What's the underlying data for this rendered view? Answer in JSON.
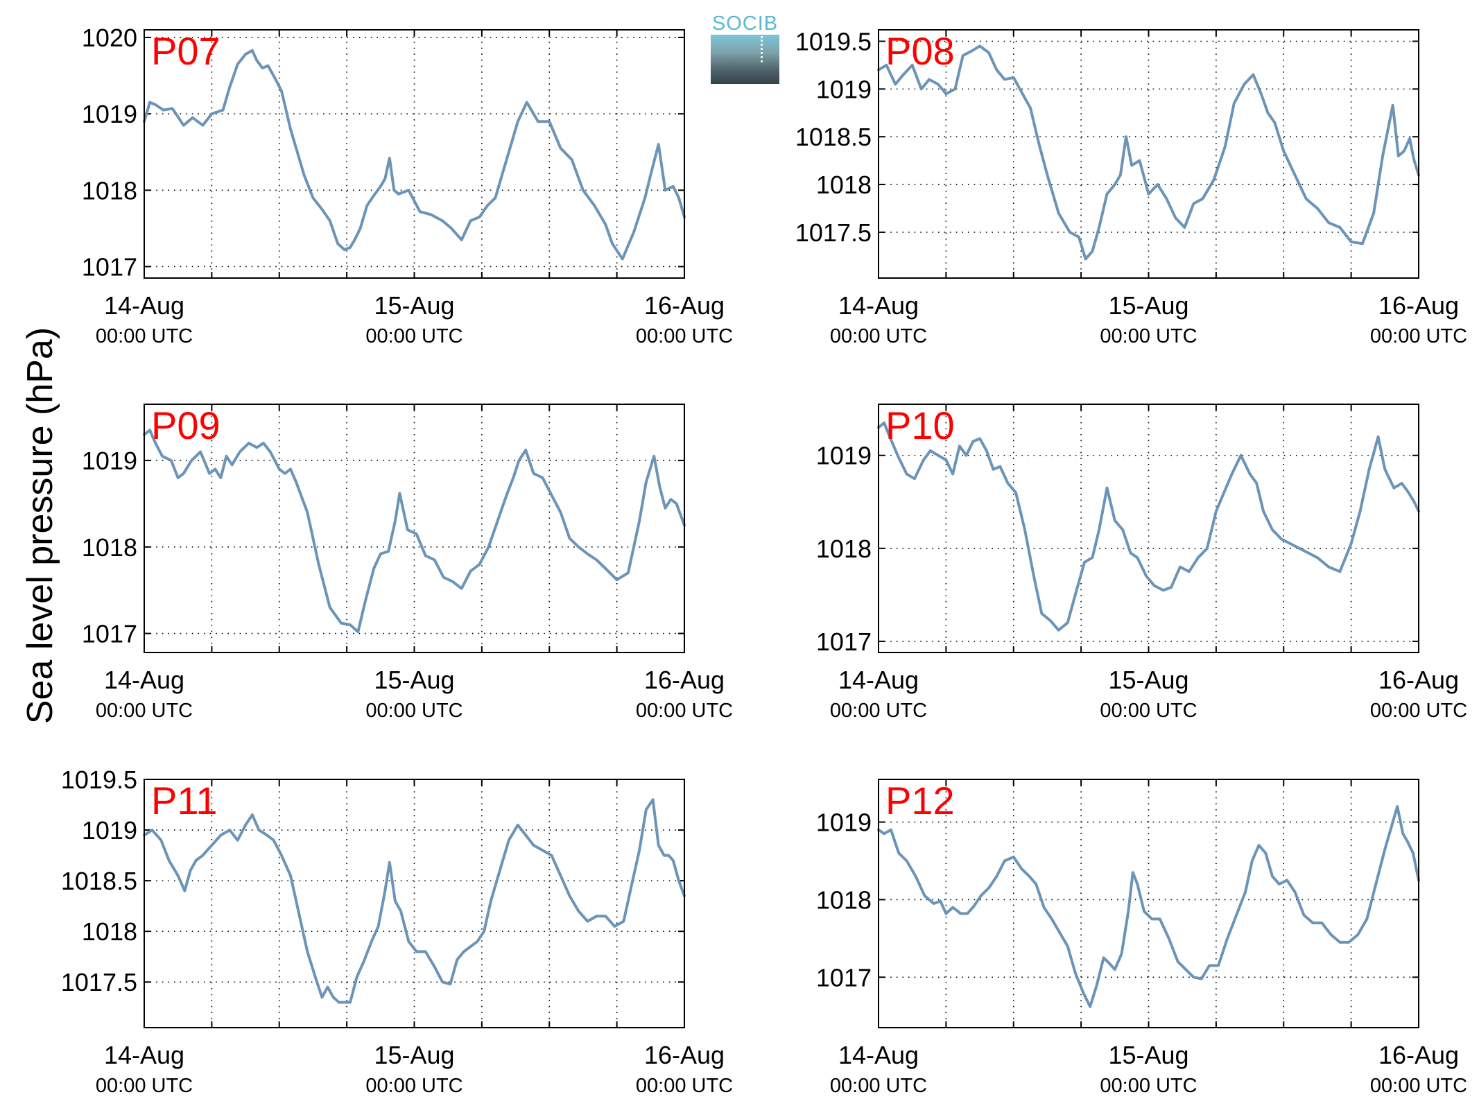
{
  "figure": {
    "ylabel": "Sea level pressure (hPa)",
    "line_color": "#6b94b8",
    "station_label_color": "#ff0000",
    "logo_text": "SOCIB"
  },
  "chart_data": [
    {
      "type": "line",
      "station": "P07",
      "x_unit": "hours since 14-Aug 00:00 UTC",
      "xlim": [
        0,
        48
      ],
      "ylim": [
        1016.85,
        1020.1
      ],
      "yticks": [
        1017,
        1018,
        1019,
        1020
      ],
      "ytick_labels": [
        "1017",
        "1018",
        "1019",
        "1020"
      ],
      "xticks": [
        0,
        24,
        48
      ],
      "xtick_labels": [
        [
          "14-Aug",
          "00:00 UTC"
        ],
        [
          "15-Aug",
          "00:00 UTC"
        ],
        [
          "16-Aug",
          "00:00 UTC"
        ]
      ],
      "grid": true,
      "legend": "none",
      "x": [
        0,
        0.5,
        1.0,
        1.7,
        2.5,
        3.5,
        4.3,
        5.2,
        6.0,
        7.0,
        7.6,
        8.3,
        9.0,
        9.6,
        10.0,
        10.5,
        11.0,
        11.5,
        12.2,
        13.0,
        13.5,
        14.2,
        15.0,
        15.8,
        16.5,
        17.2,
        17.8,
        18.3,
        18.7,
        19.2,
        19.8,
        20.5,
        21.0,
        21.4,
        21.8,
        22.2,
        22.6,
        23.5,
        24.5,
        25.5,
        26.5,
        27.3,
        28.2,
        29.0,
        29.8,
        30.5,
        31.2,
        32.0,
        32.6,
        33.2,
        34.0,
        35.0,
        36.0,
        37.0,
        38.0,
        39.0,
        40.0,
        41.0,
        41.6,
        42.5,
        43.5,
        44.5,
        45.0,
        45.7,
        46.3,
        47.0,
        47.5,
        48.0
      ],
      "y": [
        1018.9,
        1019.15,
        1019.12,
        1019.05,
        1019.07,
        1018.85,
        1018.95,
        1018.85,
        1019.0,
        1019.05,
        1019.35,
        1019.65,
        1019.78,
        1019.83,
        1019.7,
        1019.6,
        1019.63,
        1019.5,
        1019.3,
        1018.8,
        1018.55,
        1018.2,
        1017.9,
        1017.75,
        1017.6,
        1017.3,
        1017.22,
        1017.25,
        1017.35,
        1017.5,
        1017.8,
        1017.95,
        1018.05,
        1018.15,
        1018.42,
        1018.0,
        1017.95,
        1018.0,
        1017.72,
        1017.68,
        1017.6,
        1017.5,
        1017.35,
        1017.6,
        1017.65,
        1017.8,
        1017.9,
        1018.3,
        1018.6,
        1018.9,
        1019.15,
        1018.9,
        1018.9,
        1018.55,
        1018.4,
        1018.0,
        1017.8,
        1017.55,
        1017.3,
        1017.1,
        1017.45,
        1017.9,
        1018.2,
        1018.6,
        1018.0,
        1018.05,
        1017.9,
        1017.65
      ]
    },
    {
      "type": "line",
      "station": "P08",
      "x_unit": "hours since 14-Aug 00:00 UTC",
      "xlim": [
        0,
        48
      ],
      "ylim": [
        1017.02,
        1019.62
      ],
      "yticks": [
        1017.5,
        1018,
        1018.5,
        1019,
        1019.5
      ],
      "ytick_labels": [
        "1017.5",
        "1018",
        "1018.5",
        "1019",
        "1019.5"
      ],
      "xticks": [
        0,
        24,
        48
      ],
      "xtick_labels": [
        [
          "14-Aug",
          "00:00 UTC"
        ],
        [
          "15-Aug",
          "00:00 UTC"
        ],
        [
          "16-Aug",
          "00:00 UTC"
        ]
      ],
      "grid": true,
      "legend": "none",
      "x": [
        0,
        0.7,
        1.5,
        2.2,
        3.0,
        3.8,
        4.5,
        5.3,
        6.0,
        6.8,
        7.5,
        8.3,
        9.0,
        9.8,
        10.5,
        11.2,
        12.0,
        12.8,
        13.5,
        14.2,
        15.0,
        16.0,
        17.0,
        17.8,
        18.4,
        19.0,
        19.6,
        20.3,
        21.0,
        21.5,
        22.0,
        22.5,
        23.2,
        24.0,
        24.8,
        25.6,
        26.4,
        27.2,
        28.0,
        28.8,
        29.8,
        30.8,
        31.6,
        32.5,
        33.3,
        34.0,
        34.6,
        35.2,
        36.0,
        37.0,
        38.0,
        39.0,
        40.0,
        41.0,
        42.0,
        43.0,
        44.0,
        44.8,
        45.7,
        46.2,
        46.7,
        47.2,
        47.6,
        48.0
      ],
      "y": [
        1019.2,
        1019.25,
        1019.05,
        1019.15,
        1019.25,
        1019.0,
        1019.1,
        1019.05,
        1018.95,
        1019.0,
        1019.35,
        1019.4,
        1019.45,
        1019.38,
        1019.2,
        1019.1,
        1019.12,
        1018.95,
        1018.8,
        1018.45,
        1018.1,
        1017.7,
        1017.5,
        1017.45,
        1017.22,
        1017.3,
        1017.55,
        1017.9,
        1018.0,
        1018.1,
        1018.5,
        1018.2,
        1018.25,
        1017.9,
        1018.0,
        1017.85,
        1017.65,
        1017.55,
        1017.8,
        1017.85,
        1018.05,
        1018.4,
        1018.85,
        1019.05,
        1019.15,
        1018.95,
        1018.75,
        1018.65,
        1018.35,
        1018.1,
        1017.85,
        1017.75,
        1017.6,
        1017.55,
        1017.4,
        1017.38,
        1017.7,
        1018.3,
        1018.83,
        1018.3,
        1018.35,
        1018.48,
        1018.25,
        1018.1
      ]
    },
    {
      "type": "line",
      "station": "P09",
      "x_unit": "hours since 14-Aug 00:00 UTC",
      "xlim": [
        0,
        48
      ],
      "ylim": [
        1016.78,
        1019.65
      ],
      "yticks": [
        1017,
        1018,
        1019
      ],
      "ytick_labels": [
        "1017",
        "1018",
        "1019"
      ],
      "xticks": [
        0,
        24,
        48
      ],
      "xtick_labels": [
        [
          "14-Aug",
          "00:00 UTC"
        ],
        [
          "15-Aug",
          "00:00 UTC"
        ],
        [
          "16-Aug",
          "00:00 UTC"
        ]
      ],
      "grid": true,
      "legend": "none",
      "x": [
        0,
        0.5,
        1.0,
        1.6,
        2.4,
        3.0,
        3.5,
        4.2,
        5.0,
        5.8,
        6.3,
        6.8,
        7.3,
        7.8,
        8.5,
        9.3,
        10.0,
        10.6,
        11.2,
        12.0,
        12.5,
        13.0,
        13.5,
        14.5,
        15.5,
        16.5,
        17.5,
        18.3,
        19.0,
        19.6,
        20.4,
        21.0,
        21.7,
        22.3,
        22.7,
        23.4,
        24.2,
        25.0,
        25.8,
        26.6,
        27.4,
        28.2,
        29.0,
        29.8,
        30.6,
        31.4,
        32.2,
        32.8,
        33.3,
        33.9,
        34.6,
        35.4,
        36.2,
        37.0,
        37.8,
        38.6,
        39.4,
        40.2,
        41.0,
        42.0,
        43.0,
        44.0,
        44.6,
        45.3,
        45.8,
        46.3,
        46.8,
        47.3,
        48.0
      ],
      "y": [
        1019.3,
        1019.35,
        1019.2,
        1019.05,
        1019.0,
        1018.8,
        1018.85,
        1019.0,
        1019.1,
        1018.85,
        1018.9,
        1018.8,
        1019.05,
        1018.95,
        1019.1,
        1019.2,
        1019.15,
        1019.2,
        1019.1,
        1018.9,
        1018.85,
        1018.9,
        1018.75,
        1018.4,
        1017.8,
        1017.3,
        1017.12,
        1017.1,
        1017.02,
        1017.35,
        1017.75,
        1017.92,
        1017.95,
        1018.3,
        1018.62,
        1018.2,
        1018.15,
        1017.9,
        1017.85,
        1017.65,
        1017.6,
        1017.52,
        1017.72,
        1017.8,
        1018.0,
        1018.3,
        1018.6,
        1018.8,
        1019.0,
        1019.12,
        1018.85,
        1018.8,
        1018.6,
        1018.4,
        1018.1,
        1018.0,
        1017.92,
        1017.85,
        1017.75,
        1017.62,
        1017.7,
        1018.3,
        1018.75,
        1019.05,
        1018.7,
        1018.45,
        1018.55,
        1018.5,
        1018.25
      ]
    },
    {
      "type": "line",
      "station": "P10",
      "x_unit": "hours since 14-Aug 00:00 UTC",
      "xlim": [
        0,
        48
      ],
      "ylim": [
        1016.88,
        1019.55
      ],
      "yticks": [
        1017,
        1018,
        1019
      ],
      "ytick_labels": [
        "1017",
        "1018",
        "1019"
      ],
      "xticks": [
        0,
        24,
        48
      ],
      "xtick_labels": [
        [
          "14-Aug",
          "00:00 UTC"
        ],
        [
          "15-Aug",
          "00:00 UTC"
        ],
        [
          "16-Aug",
          "00:00 UTC"
        ]
      ],
      "grid": true,
      "legend": "none",
      "x": [
        0,
        0.5,
        1.0,
        1.7,
        2.5,
        3.2,
        4.0,
        4.6,
        5.3,
        6.0,
        6.6,
        7.2,
        7.8,
        8.4,
        9.0,
        9.6,
        10.2,
        10.8,
        11.5,
        12.2,
        13.0,
        13.8,
        14.5,
        15.3,
        16.0,
        16.8,
        17.6,
        18.3,
        19.0,
        19.6,
        20.3,
        21.0,
        21.7,
        22.4,
        23.0,
        23.8,
        24.5,
        25.3,
        26.0,
        26.8,
        27.6,
        28.4,
        29.2,
        30.0,
        30.7,
        31.4,
        32.2,
        33.0,
        33.6,
        34.2,
        35.0,
        35.8,
        36.6,
        37.4,
        38.2,
        39.0,
        40.0,
        41.0,
        42.0,
        42.8,
        43.6,
        44.4,
        45.0,
        45.8,
        46.5,
        47.1,
        47.6,
        48.0
      ],
      "y": [
        1019.3,
        1019.35,
        1019.2,
        1019.0,
        1018.8,
        1018.75,
        1018.95,
        1019.05,
        1019.0,
        1018.95,
        1018.8,
        1019.1,
        1019.0,
        1019.15,
        1019.18,
        1019.05,
        1018.85,
        1018.88,
        1018.7,
        1018.6,
        1018.2,
        1017.7,
        1017.3,
        1017.22,
        1017.12,
        1017.2,
        1017.55,
        1017.85,
        1017.9,
        1018.2,
        1018.65,
        1018.3,
        1018.2,
        1017.95,
        1017.9,
        1017.7,
        1017.6,
        1017.55,
        1017.58,
        1017.8,
        1017.75,
        1017.9,
        1018.0,
        1018.4,
        1018.6,
        1018.8,
        1019.0,
        1018.8,
        1018.7,
        1018.4,
        1018.2,
        1018.1,
        1018.05,
        1018.0,
        1017.95,
        1017.9,
        1017.8,
        1017.75,
        1018.05,
        1018.4,
        1018.85,
        1019.2,
        1018.85,
        1018.65,
        1018.7,
        1018.6,
        1018.5,
        1018.4
      ]
    },
    {
      "type": "line",
      "station": "P11",
      "x_unit": "hours since 14-Aug 00:00 UTC",
      "xlim": [
        0,
        48
      ],
      "ylim": [
        1017.05,
        1019.5
      ],
      "yticks": [
        1017.5,
        1018,
        1018.5,
        1019,
        1019.5
      ],
      "ytick_labels": [
        "1017.5",
        "1018",
        "1018.5",
        "1019",
        "1019.5"
      ],
      "xticks": [
        0,
        24,
        48
      ],
      "xtick_labels": [
        [
          "14-Aug",
          "00:00 UTC"
        ],
        [
          "15-Aug",
          "00:00 UTC"
        ],
        [
          "16-Aug",
          "00:00 UTC"
        ]
      ],
      "grid": true,
      "legend": "none",
      "x": [
        0,
        0.7,
        1.5,
        2.2,
        3.0,
        3.6,
        4.1,
        4.6,
        5.2,
        6.0,
        6.8,
        7.6,
        8.3,
        9.0,
        9.6,
        10.2,
        10.9,
        11.5,
        12.2,
        13.0,
        13.8,
        14.5,
        15.2,
        15.8,
        16.3,
        16.8,
        17.3,
        17.8,
        18.3,
        18.9,
        19.5,
        20.2,
        20.8,
        21.4,
        21.8,
        22.3,
        22.8,
        23.5,
        24.2,
        25.0,
        25.8,
        26.5,
        27.2,
        27.8,
        28.4,
        29.0,
        29.6,
        30.2,
        30.8,
        31.6,
        32.4,
        33.2,
        33.9,
        34.6,
        35.4,
        36.2,
        37.0,
        37.8,
        38.6,
        39.4,
        40.2,
        41.0,
        41.8,
        42.6,
        43.4,
        44.0,
        44.6,
        45.2,
        45.7,
        46.2,
        46.6,
        47.0,
        47.5,
        48.0
      ],
      "y": [
        1018.95,
        1019.0,
        1018.9,
        1018.7,
        1018.55,
        1018.4,
        1018.6,
        1018.7,
        1018.75,
        1018.85,
        1018.95,
        1019.0,
        1018.9,
        1019.05,
        1019.15,
        1019.0,
        1018.95,
        1018.9,
        1018.75,
        1018.55,
        1018.15,
        1017.8,
        1017.55,
        1017.35,
        1017.45,
        1017.35,
        1017.3,
        1017.3,
        1017.3,
        1017.55,
        1017.7,
        1017.9,
        1018.05,
        1018.4,
        1018.68,
        1018.3,
        1018.2,
        1017.9,
        1017.8,
        1017.8,
        1017.65,
        1017.5,
        1017.48,
        1017.72,
        1017.8,
        1017.85,
        1017.9,
        1018.0,
        1018.3,
        1018.6,
        1018.9,
        1019.05,
        1018.95,
        1018.85,
        1018.8,
        1018.75,
        1018.55,
        1018.35,
        1018.2,
        1018.1,
        1018.15,
        1018.15,
        1018.05,
        1018.1,
        1018.5,
        1018.8,
        1019.2,
        1019.3,
        1018.85,
        1018.75,
        1018.75,
        1018.7,
        1018.5,
        1018.35
      ]
    },
    {
      "type": "line",
      "station": "P12",
      "x_unit": "hours since 14-Aug 00:00 UTC",
      "xlim": [
        0,
        48
      ],
      "ylim": [
        1016.35,
        1019.55
      ],
      "yticks": [
        1017,
        1018,
        1019
      ],
      "ytick_labels": [
        "1017",
        "1018",
        "1019"
      ],
      "xticks": [
        0,
        24,
        48
      ],
      "xtick_labels": [
        [
          "14-Aug",
          "00:00 UTC"
        ],
        [
          "15-Aug",
          "00:00 UTC"
        ],
        [
          "16-Aug",
          "00:00 UTC"
        ]
      ],
      "grid": true,
      "legend": "none",
      "x": [
        0,
        0.5,
        1.1,
        1.8,
        2.5,
        3.3,
        4.1,
        4.9,
        5.5,
        6.0,
        6.6,
        7.3,
        7.9,
        8.5,
        9.1,
        9.8,
        10.5,
        11.2,
        12.0,
        12.7,
        13.4,
        14.0,
        14.7,
        15.4,
        16.0,
        16.8,
        17.5,
        18.2,
        18.8,
        19.4,
        20.0,
        20.5,
        21.0,
        21.6,
        22.2,
        22.6,
        23.0,
        23.6,
        24.3,
        25.0,
        25.8,
        26.6,
        27.3,
        28.0,
        28.7,
        29.4,
        30.2,
        31.0,
        31.8,
        32.6,
        33.2,
        33.8,
        34.4,
        35.0,
        35.6,
        36.3,
        37.0,
        37.8,
        38.6,
        39.4,
        40.2,
        41.0,
        41.8,
        42.6,
        43.4,
        44.2,
        45.0,
        45.6,
        46.1,
        46.6,
        47.0,
        47.5,
        48.0
      ],
      "y": [
        1018.9,
        1018.85,
        1018.9,
        1018.6,
        1018.5,
        1018.3,
        1018.05,
        1017.95,
        1017.98,
        1017.82,
        1017.9,
        1017.82,
        1017.82,
        1017.92,
        1018.05,
        1018.15,
        1018.3,
        1018.5,
        1018.55,
        1018.4,
        1018.3,
        1018.2,
        1017.9,
        1017.75,
        1017.6,
        1017.4,
        1017.05,
        1016.8,
        1016.62,
        1016.9,
        1017.25,
        1017.18,
        1017.1,
        1017.3,
        1017.85,
        1018.35,
        1018.2,
        1017.85,
        1017.75,
        1017.75,
        1017.5,
        1017.2,
        1017.1,
        1017.0,
        1016.98,
        1017.15,
        1017.15,
        1017.5,
        1017.8,
        1018.1,
        1018.5,
        1018.7,
        1018.6,
        1018.3,
        1018.2,
        1018.25,
        1018.1,
        1017.8,
        1017.7,
        1017.7,
        1017.55,
        1017.45,
        1017.45,
        1017.55,
        1017.75,
        1018.2,
        1018.65,
        1018.95,
        1019.2,
        1018.85,
        1018.75,
        1018.6,
        1018.25
      ]
    }
  ]
}
